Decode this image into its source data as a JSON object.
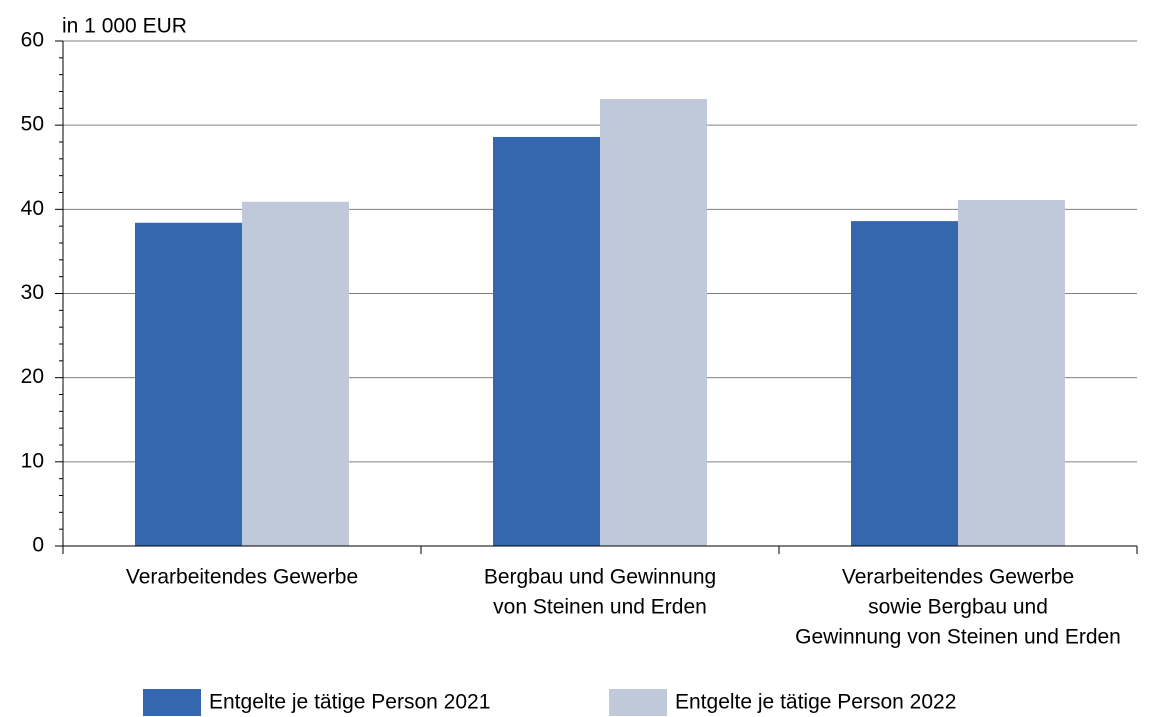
{
  "chart_data": {
    "type": "bar",
    "y_axis_label": "in 1 000 EUR",
    "categories": [
      [
        "Verarbeitendes Gewerbe"
      ],
      [
        "Bergbau und Gewinnung",
        "von Steinen und Erden"
      ],
      [
        "Verarbeitendes Gewerbe",
        "sowie Bergbau und",
        "Gewinnung von Steinen und Erden"
      ]
    ],
    "series": [
      {
        "name": "Entgelte je tätige Person 2021",
        "color": "#3467ae",
        "values": [
          38.4,
          48.6,
          38.6
        ]
      },
      {
        "name": "Entgelte je tätige Person 2022",
        "color": "#c0c9d9",
        "values": [
          40.9,
          53.1,
          41.1
        ]
      }
    ],
    "ylim": [
      0,
      60
    ],
    "yticks": [
      0,
      10,
      20,
      30,
      40,
      50,
      60
    ],
    "yminorticks": [
      2,
      4,
      6,
      8,
      12,
      14,
      16,
      18,
      22,
      24,
      26,
      28,
      32,
      34,
      36,
      38,
      42,
      44,
      46,
      48,
      52,
      54,
      56,
      58
    ],
    "grid": true
  }
}
